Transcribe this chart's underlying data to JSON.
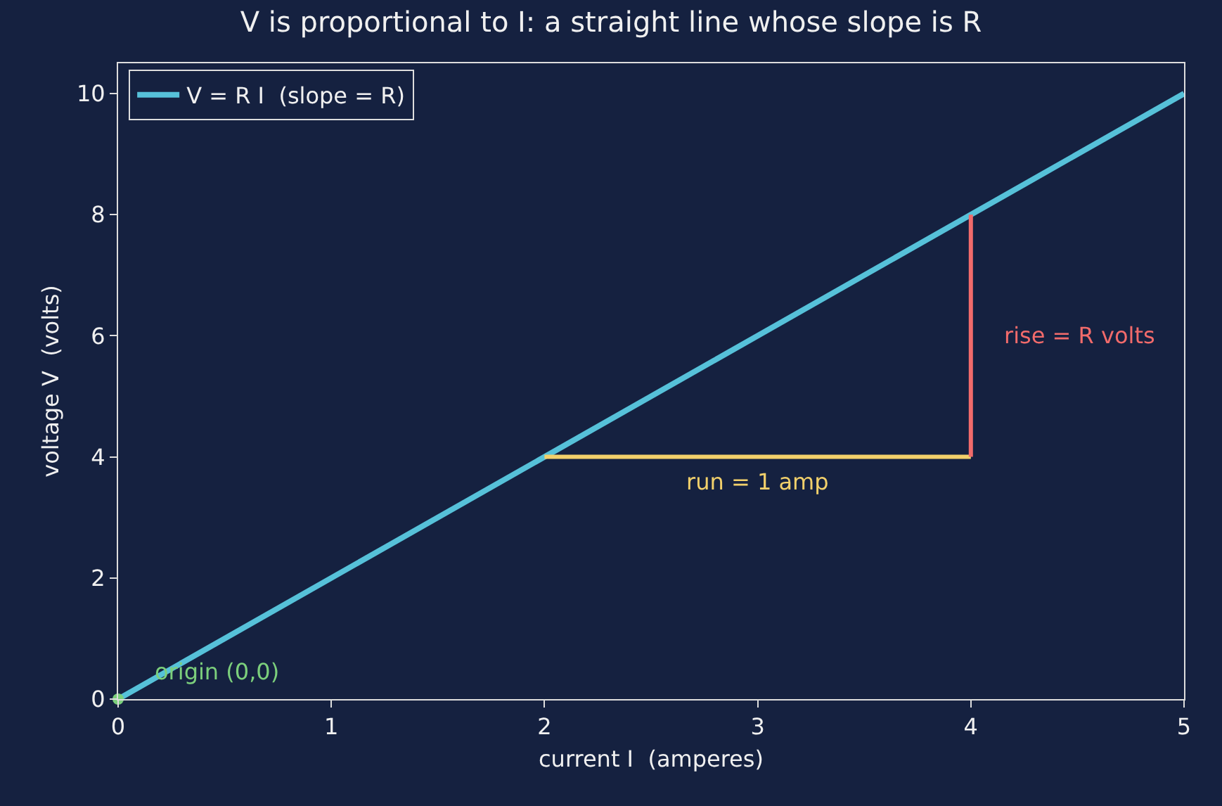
{
  "chart_data": {
    "type": "line",
    "title": "V is proportional to I: a straight line whose slope is R",
    "xlabel": "current I  (amperes)",
    "ylabel": "voltage V  (volts)",
    "x": [
      0,
      5
    ],
    "series": [
      {
        "name": "V = R I  (slope = R)",
        "color": "#56c1d9",
        "values": [
          0,
          10
        ]
      },
      {
        "type": "line",
        "color": "#f2d06b",
        "x": [
          2,
          4
        ],
        "values": [
          4,
          4
        ]
      },
      {
        "type": "line",
        "color": "#f26b6b",
        "x": [
          4,
          4
        ],
        "values": [
          4,
          8
        ]
      },
      {
        "type": "scatter",
        "color": "#7ccf7c",
        "x": [
          0
        ],
        "values": [
          0
        ],
        "marker": "circle"
      }
    ],
    "annotations": [
      {
        "text": "run = 1 amp",
        "x": 3,
        "y": 4
      },
      {
        "text": "rise = R volts",
        "x": 4,
        "y": 6
      },
      {
        "text": "origin (0,0)",
        "x": 0,
        "y": 0
      }
    ],
    "xlim": [
      0,
      5
    ],
    "xticks": [
      0,
      1,
      2,
      3,
      4,
      5
    ],
    "ylim": [
      0,
      10.5
    ],
    "yticks": [
      0,
      2,
      4,
      6,
      8,
      10
    ],
    "grid": false,
    "legend": "top left",
    "marker": "none",
    "line_style": "solid"
  }
}
